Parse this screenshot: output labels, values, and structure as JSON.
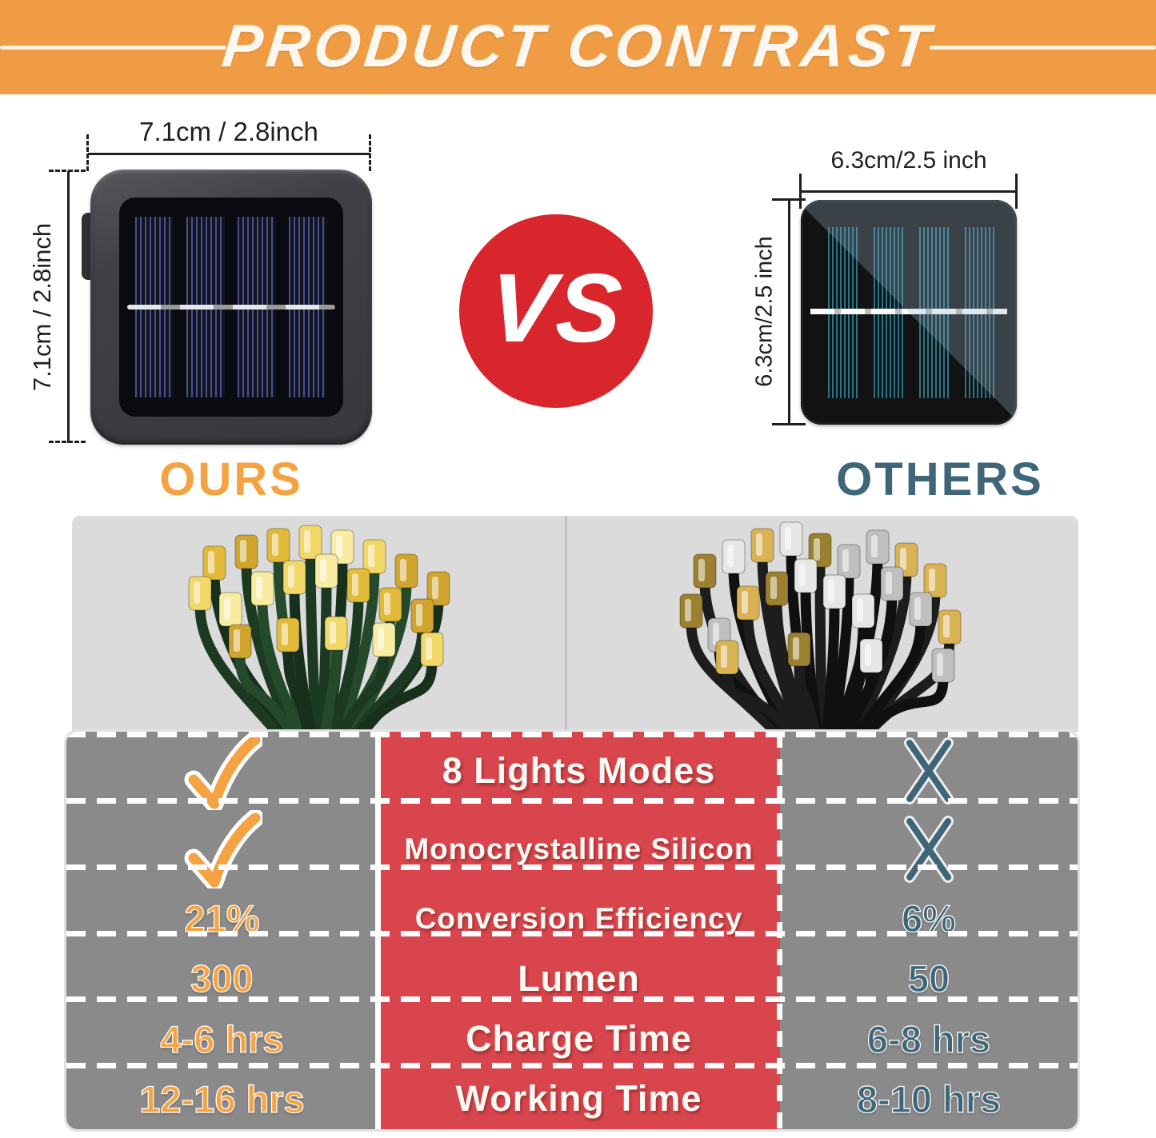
{
  "banner": {
    "title": "PRODUCT CONTRAST"
  },
  "ours": {
    "label": "OURS",
    "top_dimension": "7.1cm / 2.8inch",
    "side_dimension": "7.1cm / 2.8inch"
  },
  "others": {
    "label": "OTHERS",
    "top_dimension": "6.3cm/2.5 inch",
    "side_dimension": "6.3cm/2.5 inch"
  },
  "vs_badge": "VS",
  "comparison_table": {
    "columns": [
      "ours",
      "feature",
      "others"
    ],
    "rows": [
      {
        "ours": "check",
        "feature": "8 Lights Modes",
        "others": "cross"
      },
      {
        "ours": "check",
        "feature": "Monocrystalline Silicon",
        "others": "cross"
      },
      {
        "ours": "21%",
        "feature": "Conversion Efficiency",
        "others": "6%"
      },
      {
        "ours": "300",
        "feature": "Lumen",
        "others": "50"
      },
      {
        "ours": "4-6 hrs",
        "feature": "Charge Time",
        "others": "6-8 hrs"
      },
      {
        "ours": "12-16 hrs",
        "feature": "Working Time",
        "others": "8-10 hrs"
      }
    ]
  },
  "colors": {
    "banner_orange": "#F09C44",
    "ours_accent": "#F5A243",
    "others_accent": "#3E6578",
    "vs_red": "#D9262C",
    "table_gray": "#8A8A8A",
    "table_red": "#D8454C"
  }
}
